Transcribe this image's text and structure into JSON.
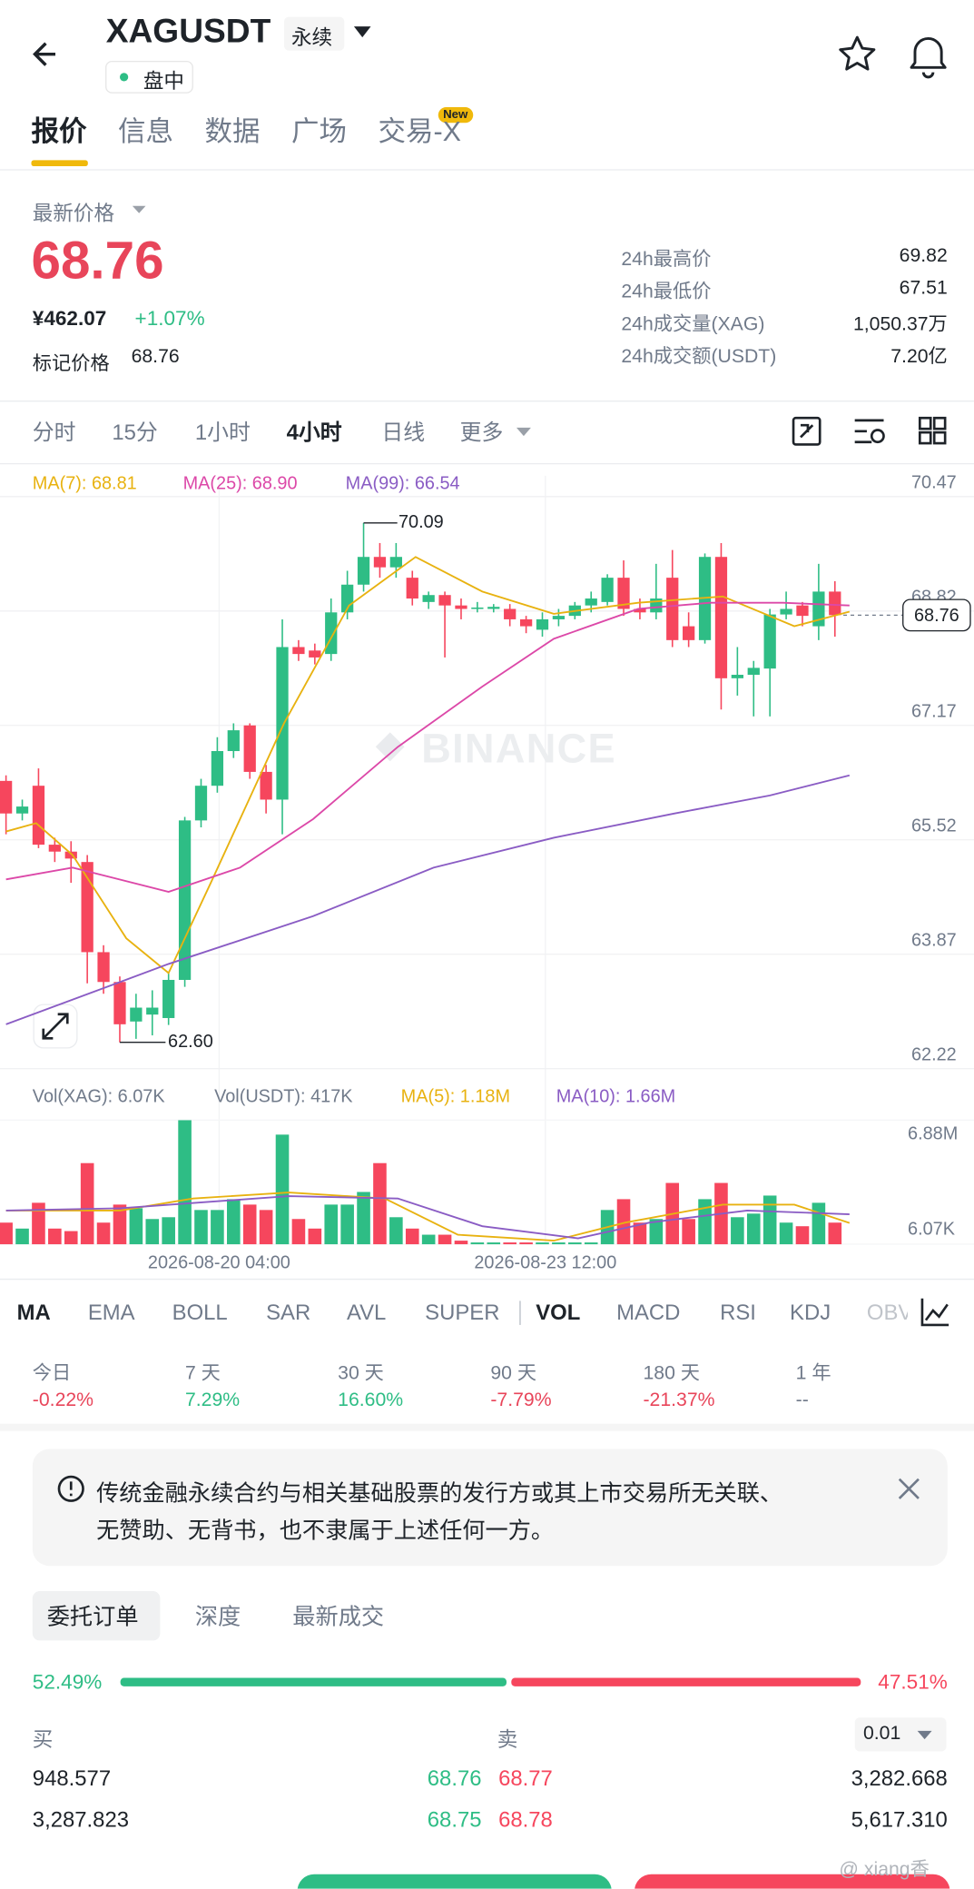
{
  "header": {
    "symbol": "XAGUSDT",
    "contract": "永续",
    "status": "盘中"
  },
  "tabs": {
    "items": [
      "报价",
      "信息",
      "数据",
      "广场",
      "交易-X"
    ],
    "badge": "New"
  },
  "price": {
    "label": "最新价格",
    "last": "68.76",
    "cny": "¥462.07",
    "change": "+1.07%",
    "mark_label": "标记价格",
    "mark": "68.76"
  },
  "stats": [
    {
      "label": "24h最高价",
      "value": "69.82"
    },
    {
      "label": "24h最低价",
      "value": "67.51"
    },
    {
      "label": "24h成交量(XAG)",
      "value": "1,050.37万"
    },
    {
      "label": "24h成交额(USDT)",
      "value": "7.20亿"
    }
  ],
  "intervals": {
    "items": [
      "分时",
      "15分",
      "1小时",
      "4小时",
      "日线",
      "更多"
    ],
    "active": "4小时"
  },
  "chart": {
    "type": "candlestick",
    "watermark": "BINANCE",
    "ylim": [
      62.05,
      70.77
    ],
    "yticks": [
      70.47,
      68.82,
      67.17,
      65.52,
      63.87,
      62.22
    ],
    "open": [
      66.37,
      65.9,
      66.3,
      65.45,
      65.35,
      65.2,
      63.9,
      63.47,
      62.9,
      63.0,
      62.95,
      63.5,
      65.8,
      66.3,
      66.8,
      67.17,
      66.5,
      66.1,
      68.3,
      68.25,
      68.2,
      68.8,
      69.2,
      69.6,
      69.45,
      69.3,
      68.95,
      69.05,
      68.9,
      68.85,
      68.85,
      68.85,
      68.7,
      68.55,
      68.7,
      68.75,
      68.9,
      68.95,
      69.3,
      68.85,
      68.8,
      69.3,
      68.6,
      68.4,
      69.6,
      67.85,
      67.9,
      67.99,
      68.77,
      68.9,
      68.6,
      69.1
    ],
    "high": [
      66.45,
      66.1,
      66.55,
      65.55,
      65.5,
      65.3,
      64.0,
      63.55,
      63.3,
      63.35,
      63.6,
      65.85,
      66.4,
      67.0,
      67.2,
      67.2,
      66.6,
      68.7,
      68.4,
      68.35,
      69.0,
      69.4,
      70.09,
      69.8,
      69.8,
      69.4,
      69.1,
      69.1,
      69.0,
      68.95,
      68.92,
      68.92,
      68.75,
      68.8,
      68.85,
      68.95,
      69.1,
      69.35,
      69.55,
      69.0,
      69.5,
      69.7,
      68.8,
      69.65,
      69.8,
      68.3,
      68.1,
      68.85,
      69.1,
      68.95,
      69.5,
      69.25
    ],
    "low": [
      65.6,
      65.8,
      65.4,
      65.2,
      64.9,
      63.45,
      63.3,
      62.6,
      62.65,
      62.7,
      62.85,
      63.4,
      65.7,
      66.2,
      66.7,
      66.4,
      65.9,
      65.6,
      68.1,
      68.05,
      68.1,
      68.7,
      69.1,
      69.3,
      69.3,
      68.9,
      68.85,
      68.15,
      68.7,
      68.8,
      68.8,
      68.6,
      68.5,
      68.45,
      68.6,
      68.7,
      68.8,
      68.9,
      68.75,
      68.7,
      68.7,
      68.3,
      68.3,
      68.35,
      67.4,
      67.6,
      67.3,
      67.3,
      68.7,
      68.6,
      68.4,
      68.45
    ],
    "close": [
      65.9,
      66.0,
      65.45,
      65.35,
      65.25,
      63.9,
      63.47,
      62.86,
      63.1,
      63.1,
      63.5,
      65.8,
      66.3,
      66.8,
      67.1,
      66.5,
      66.1,
      68.3,
      68.2,
      68.15,
      68.8,
      69.2,
      69.6,
      69.45,
      69.6,
      69.0,
      69.05,
      68.9,
      68.85,
      68.87,
      68.88,
      68.7,
      68.6,
      68.7,
      68.75,
      68.9,
      69.0,
      69.3,
      68.85,
      68.8,
      69.0,
      68.4,
      68.4,
      69.6,
      67.85,
      67.9,
      68.0,
      68.77,
      68.85,
      68.75,
      69.1,
      68.76
    ],
    "high_mark": {
      "value": 70.09,
      "label": "70.09"
    },
    "low_mark": {
      "value": 62.6,
      "label": "62.60"
    },
    "last": 68.76,
    "ma": [
      {
        "name": "MA(7): 68.81",
        "color": "#e8b210",
        "x": [
          0,
          1.85,
          4.1,
          7.4,
          10,
          12.6,
          17.1,
          21.1,
          25.2,
          29.3,
          33.7,
          38.9,
          44.1,
          48.5,
          51.9
        ],
        "values": [
          65.64,
          65.76,
          65.3,
          64.1,
          63.6,
          64.9,
          67.2,
          68.9,
          69.6,
          69.1,
          68.78,
          68.94,
          69.03,
          68.6,
          68.81
        ]
      },
      {
        "name": "MA(25): 68.90",
        "color": "#dc48a8",
        "x": [
          0,
          4.1,
          10,
          14.4,
          18.9,
          24.1,
          29.3,
          33.7,
          38.9,
          43.3,
          47.8,
          51.9
        ],
        "values": [
          64.95,
          65.12,
          64.77,
          65.12,
          65.82,
          66.86,
          67.73,
          68.42,
          68.85,
          68.94,
          68.94,
          68.9
        ]
      },
      {
        "name": "MA(99): 66.54",
        "color": "#8a5cc4",
        "x": [
          0,
          10,
          18.9,
          26.3,
          33.7,
          41.1,
          47,
          51.9
        ],
        "values": [
          62.86,
          63.73,
          64.42,
          65.12,
          65.55,
          65.9,
          66.16,
          66.45
        ]
      }
    ],
    "x_labels": [
      "2026-08-20 04:00",
      "2026-08-23 12:00"
    ],
    "volume": {
      "legend": [
        {
          "text": "Vol(XAG): 6.07K",
          "color": "#707a8a"
        },
        {
          "text": "Vol(USDT): 417K",
          "color": "#707a8a"
        },
        {
          "text": "MA(5): 1.18M",
          "color": "#e8b210"
        },
        {
          "text": "MA(10): 1.66M",
          "color": "#8a5cc4"
        }
      ],
      "ylim": [
        0,
        6.88
      ],
      "yticks": [
        {
          "value": 6.88,
          "label": "6.88M"
        },
        {
          "value": 0.00607,
          "label": "6.07K"
        }
      ],
      "values": [
        1.2,
        0.87,
        2.3,
        0.87,
        0.73,
        4.5,
        1.2,
        2.2,
        2.0,
        1.4,
        1.5,
        6.88,
        1.9,
        1.9,
        2.5,
        2.2,
        1.9,
        6.08,
        1.4,
        0.87,
        2.2,
        2.2,
        2.9,
        4.5,
        1.5,
        0.87,
        0.53,
        0.53,
        0.2,
        0.1,
        0.1,
        0.1,
        0.1,
        0.1,
        0.1,
        0.1,
        0.1,
        1.9,
        2.5,
        1.2,
        1.4,
        3.4,
        1.4,
        2.5,
        3.4,
        1.5,
        1.7,
        2.7,
        1.2,
        1.0,
        2.3,
        1.2
      ],
      "ma": [
        {
          "color": "#e8b210",
          "x": [
            0,
            7.04,
            11.5,
            17.4,
            23.3,
            27.8,
            33.7,
            38.1,
            44.1,
            48.5,
            51.9
          ],
          "values": [
            1.87,
            1.87,
            2.54,
            2.87,
            2.54,
            0.53,
            0.2,
            1.2,
            2.2,
            2.2,
            1.18
          ]
        },
        {
          "color": "#8a5cc4",
          "x": [
            0,
            7.04,
            17.4,
            24.1,
            29.3,
            35.2,
            39.6,
            45.6,
            51.9
          ],
          "values": [
            1.87,
            2.0,
            2.67,
            2.54,
            1.0,
            0.33,
            1.2,
            1.87,
            1.66
          ]
        }
      ]
    }
  },
  "indicators": {
    "items": [
      "MA",
      "EMA",
      "BOLL",
      "SAR",
      "AVL",
      "SUPER",
      "VOL",
      "MACD",
      "RSI",
      "KDJ",
      "OBV"
    ],
    "active": [
      "MA",
      "VOL"
    ]
  },
  "performance": [
    {
      "label": "今日",
      "value": "-0.22%"
    },
    {
      "label": "7 天",
      "value": "7.29%"
    },
    {
      "label": "30 天",
      "value": "16.60%"
    },
    {
      "label": "90 天",
      "value": "-7.79%"
    },
    {
      "label": "180 天",
      "value": "-21.37%"
    },
    {
      "label": "1 年",
      "value": "--"
    }
  ],
  "notice": {
    "lines": [
      "传统金融永续合约与相关基础股票的发行方或其上市交易所无关联、",
      "无赞助、无背书，也不隶属于上述任何一方。"
    ]
  },
  "book": {
    "tabs": [
      "委托订单",
      "深度",
      "最新成交"
    ],
    "buy_ratio": {
      "value": 52.49,
      "label": "52.49%"
    },
    "sell_ratio": {
      "value": 47.51,
      "label": "47.51%"
    },
    "buy_label": "买",
    "sell_label": "卖",
    "precision": "0.01",
    "rows": [
      {
        "bid_qty": "948.577",
        "bid": "68.76",
        "ask": "68.77",
        "ask_qty": "3,282.668"
      },
      {
        "bid_qty": "3,287.823",
        "bid": "68.75",
        "ask": "68.78",
        "ask_qty": "5,617.310"
      }
    ]
  },
  "watermark": "@ xiang香"
}
